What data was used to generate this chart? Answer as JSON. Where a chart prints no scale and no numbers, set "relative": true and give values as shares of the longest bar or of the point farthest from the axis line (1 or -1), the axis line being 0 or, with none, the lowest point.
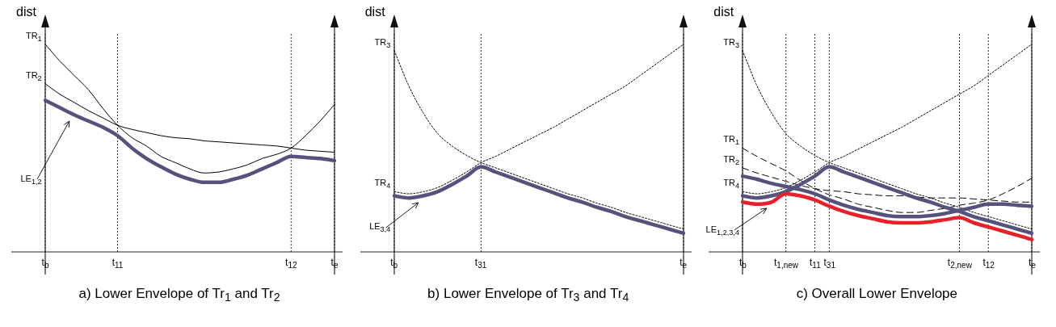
{
  "chart_data": [
    {
      "type": "line",
      "relative": true,
      "title": "a) Lower Envelope of Tr$_{1}$ and Tr$_{2}$",
      "ylabel": "dist",
      "categories": [
        "t$_{b}$",
        null,
        null,
        null,
        null,
        "t$_{11}$",
        null,
        null,
        null,
        null,
        null,
        null,
        null,
        null,
        null,
        null,
        null,
        "t$_{12}$",
        null,
        null,
        "t$_{e}$"
      ],
      "grid": "x",
      "series": [
        {
          "name": "TR$_{1}$",
          "color": "#000000",
          "line_style": "solid",
          "values": [
            1.0,
            0.92,
            0.85,
            0.78,
            0.69,
            0.61,
            0.55,
            0.51,
            0.46,
            0.43,
            0.4,
            0.38,
            0.385,
            0.4,
            0.42,
            0.45,
            0.47,
            0.5,
            0.56,
            0.63,
            0.71
          ]
        },
        {
          "name": "TR$_{2}$",
          "color": "#000000",
          "line_style": "solid",
          "values": [
            0.81,
            0.76,
            0.72,
            0.68,
            0.645,
            0.61,
            0.59,
            0.575,
            0.56,
            0.55,
            0.545,
            0.535,
            0.53,
            0.525,
            0.52,
            0.515,
            0.51,
            0.5,
            0.49,
            0.485,
            0.48
          ]
        },
        {
          "name": "LE$_{1,2}$",
          "color": "#55537c",
          "values": [
            0.73,
            0.695,
            0.66,
            0.63,
            0.6,
            0.56,
            0.5,
            0.45,
            0.41,
            0.375,
            0.35,
            0.335,
            0.335,
            0.35,
            0.37,
            0.4,
            0.43,
            0.46,
            0.455,
            0.45,
            0.44
          ]
        }
      ]
    },
    {
      "type": "line",
      "relative": true,
      "title": "b) Lower Envelope of Tr$_{3}$ and Tr$_{4}$",
      "ylabel": "dist",
      "categories": [
        "t$_{b}$",
        null,
        null,
        null,
        null,
        null,
        "t$_{31}$",
        null,
        null,
        null,
        null,
        null,
        null,
        null,
        null,
        null,
        null,
        null,
        null,
        null,
        "t$_{e}$"
      ],
      "grid": "x",
      "series": [
        {
          "name": "TR$_{3}$",
          "color": "#000000",
          "line_style": "dotted",
          "values": [
            0.97,
            0.8,
            0.67,
            0.57,
            0.51,
            0.465,
            0.43,
            0.405,
            0.38,
            0.355,
            0.33,
            0.305,
            0.28,
            0.26,
            0.235,
            0.215,
            0.19,
            0.17,
            0.15,
            0.13,
            0.11
          ]
        },
        {
          "name": "TR$_{4}$",
          "color": "#000000",
          "line_style": "dotted",
          "values": [
            0.29,
            0.28,
            0.29,
            0.31,
            0.345,
            0.385,
            0.43,
            0.46,
            0.495,
            0.53,
            0.565,
            0.6,
            0.64,
            0.68,
            0.72,
            0.76,
            0.8,
            0.85,
            0.9,
            0.95,
            1.0
          ]
        },
        {
          "name": "LE$_{3,4}$",
          "color": "#55537c",
          "values": [
            0.27,
            0.26,
            0.27,
            0.29,
            0.325,
            0.365,
            0.41,
            0.385,
            0.36,
            0.335,
            0.31,
            0.285,
            0.26,
            0.24,
            0.215,
            0.195,
            0.17,
            0.15,
            0.13,
            0.11,
            0.09
          ]
        }
      ]
    },
    {
      "type": "line",
      "relative": true,
      "title": "c) Overall Lower Envelope",
      "ylabel": "dist",
      "categories": [
        "t$_{b}$",
        null,
        null,
        "t$_{1,new}$",
        null,
        "t$_{11}$",
        "t$_{31}$",
        null,
        null,
        null,
        null,
        null,
        null,
        null,
        null,
        "t$_{2,new}$",
        null,
        "t$_{12}$",
        null,
        null,
        "t$_{e}$"
      ],
      "grid": "x",
      "series": [
        {
          "name": "TR$_{1}$",
          "color": "#000000",
          "line_style": "dashed",
          "values": [
            0.5,
            0.46,
            0.425,
            0.39,
            0.345,
            0.305,
            0.275,
            0.255,
            0.23,
            0.215,
            0.2,
            0.19,
            0.19,
            0.2,
            0.21,
            0.225,
            0.235,
            0.25,
            0.28,
            0.315,
            0.355
          ]
        },
        {
          "name": "TR$_{2}$",
          "color": "#000000",
          "line_style": "dashed",
          "values": [
            0.405,
            0.38,
            0.36,
            0.34,
            0.32,
            0.305,
            0.295,
            0.29,
            0.28,
            0.275,
            0.27,
            0.27,
            0.265,
            0.26,
            0.26,
            0.26,
            0.255,
            0.25,
            0.245,
            0.24,
            0.24
          ]
        },
        {
          "name": "TR$_{3}$",
          "color": "#000000",
          "line_style": "dotted",
          "values": [
            0.97,
            0.8,
            0.67,
            0.57,
            0.51,
            0.465,
            0.43,
            0.405,
            0.38,
            0.355,
            0.33,
            0.305,
            0.28,
            0.26,
            0.235,
            0.215,
            0.19,
            0.17,
            0.15,
            0.13,
            0.11
          ]
        },
        {
          "name": "TR$_{4}$",
          "color": "#000000",
          "line_style": "dotted",
          "values": [
            0.29,
            0.28,
            0.29,
            0.31,
            0.345,
            0.385,
            0.43,
            0.46,
            0.495,
            0.53,
            0.565,
            0.6,
            0.64,
            0.68,
            0.72,
            0.76,
            0.8,
            0.85,
            0.9,
            0.95,
            1.0
          ]
        },
        {
          "color": "#55537c",
          "values": [
            0.365,
            0.35,
            0.33,
            0.315,
            0.3,
            0.28,
            0.25,
            0.225,
            0.205,
            0.19,
            0.175,
            0.17,
            0.17,
            0.175,
            0.185,
            0.2,
            0.215,
            0.23,
            0.23,
            0.225,
            0.22
          ]
        },
        {
          "color": "#55537c",
          "values": [
            0.27,
            0.26,
            0.27,
            0.29,
            0.325,
            0.365,
            0.41,
            0.385,
            0.36,
            0.335,
            0.31,
            0.285,
            0.26,
            0.24,
            0.215,
            0.195,
            0.17,
            0.15,
            0.13,
            0.11,
            0.09
          ]
        },
        {
          "name": "LE$_{1,2,3,4}$",
          "color": "#e8202a",
          "values": [
            0.24,
            0.23,
            0.24,
            0.28,
            0.27,
            0.25,
            0.22,
            0.195,
            0.175,
            0.16,
            0.145,
            0.14,
            0.14,
            0.145,
            0.155,
            0.165,
            0.14,
            0.12,
            0.1,
            0.08,
            0.06
          ]
        }
      ]
    }
  ]
}
